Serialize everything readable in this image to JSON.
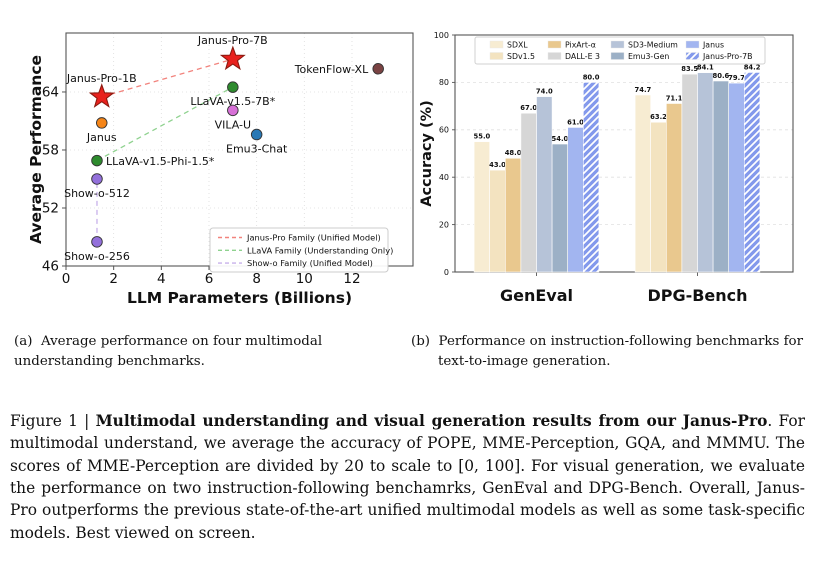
{
  "page": {
    "background": "#ffffff"
  },
  "subcaptions": {
    "a": {
      "marker": "(a)",
      "text": "Average performance on four multimodal understanding benchmarks."
    },
    "b": {
      "marker": "(b)",
      "text": "Performance on instruction-following benchmarks for text-to-image generation."
    }
  },
  "caption": {
    "prefix": "Figure 1 | ",
    "bold": "Multimodal understanding and visual generation results from our Janus-Pro",
    "rest": ". For multimodal understand, we average the accuracy of POPE, MME-Perception, GQA, and MMMU. The scores of MME-Perception are divided by 20 to scale to [0, 100]. For visual generation, we evaluate the performance on two instruction-following benchamrks, GenEval and DPG-Bench. Overall, Janus-Pro outperforms the previous state-of-the-art unified multimodal models as well as some task-specific models. Best viewed on screen."
  },
  "chart_data": [
    {
      "type": "scatter",
      "xlabel": "LLM Parameters (Billions)",
      "ylabel": "Average Performance",
      "xlim": [
        0,
        14.56
      ],
      "ylim": [
        46,
        70.1
      ],
      "xticks": [
        0,
        2,
        4,
        6,
        8,
        10,
        12
      ],
      "yticks": [
        46,
        52,
        58,
        64
      ],
      "grid": true,
      "points": [
        {
          "label": "Janus-Pro-7B",
          "x": 7.0,
          "y": 67.4,
          "marker": "star",
          "color": "#e8211d",
          "edge": "#8b1a10",
          "label_pos": "above"
        },
        {
          "label": "Janus-Pro-1B",
          "x": 1.5,
          "y": 63.5,
          "marker": "star",
          "color": "#e8211d",
          "edge": "#8b1a10",
          "label_pos": "above"
        },
        {
          "label": "TokenFlow-XL",
          "x": 13.1,
          "y": 66.4,
          "marker": "circle",
          "color": "#7a4343",
          "edge": "#333333",
          "label_pos": "left"
        },
        {
          "label": "LLaVA-v1.5-7B*",
          "x": 7.0,
          "y": 64.5,
          "marker": "circle",
          "color": "#2e8b2e",
          "edge": "#333333",
          "label_pos": "below"
        },
        {
          "label": "VILA-U",
          "x": 7.0,
          "y": 62.1,
          "marker": "circle",
          "color": "#d770d7",
          "edge": "#333333",
          "label_pos": "below"
        },
        {
          "label": "Emu3-Chat",
          "x": 8.0,
          "y": 59.6,
          "marker": "circle",
          "color": "#2878b5",
          "edge": "#333333",
          "label_pos": "below"
        },
        {
          "label": "Janus",
          "x": 1.5,
          "y": 60.8,
          "marker": "circle",
          "color": "#f58518",
          "edge": "#333333",
          "label_pos": "below"
        },
        {
          "label": "LLaVA-v1.5-Phi-1.5*",
          "x": 1.3,
          "y": 56.9,
          "marker": "circle",
          "color": "#2e8b2e",
          "edge": "#333333",
          "label_pos": "right"
        },
        {
          "label": "Show-o-512",
          "x": 1.3,
          "y": 55.0,
          "marker": "circle",
          "color": "#9370db",
          "edge": "#333333",
          "label_pos": "below"
        },
        {
          "label": "Show-o-256",
          "x": 1.3,
          "y": 48.5,
          "marker": "circle",
          "color": "#9370db",
          "edge": "#333333",
          "label_pos": "below"
        }
      ],
      "lines": [
        {
          "from": [
            1.5,
            63.5
          ],
          "to": [
            7.0,
            67.4
          ],
          "color": "#f2837d"
        },
        {
          "from": [
            1.3,
            56.9
          ],
          "to": [
            7.0,
            64.5
          ],
          "color": "#8fd28f"
        },
        {
          "from": [
            1.3,
            48.5
          ],
          "to": [
            1.3,
            55.0
          ],
          "color": "#c7b1ea"
        }
      ],
      "legend": [
        {
          "label": "Janus-Pro Family (Unified Model)",
          "color": "#f2837d"
        },
        {
          "label": "LLaVA Family (Understanding Only)",
          "color": "#8fd28f"
        },
        {
          "label": "Show-o Family (Unified Model)",
          "color": "#c7b1ea"
        }
      ],
      "legend_position": "lower right"
    },
    {
      "type": "bar",
      "ylabel": "Accuracy (%)",
      "ylim": [
        0,
        100
      ],
      "yticks": [
        0,
        20,
        40,
        60,
        80,
        100
      ],
      "grid": true,
      "categories": [
        "GenEval",
        "DPG-Bench"
      ],
      "series": [
        {
          "name": "SDXL",
          "color": "#f7ecd2",
          "values": [
            55.0,
            74.7
          ]
        },
        {
          "name": "SDv1.5",
          "color": "#f3e3c0",
          "values": [
            43.0,
            63.2
          ]
        },
        {
          "name": "PixArt-α",
          "color": "#e9c88e",
          "values": [
            48.0,
            71.1
          ]
        },
        {
          "name": "DALL-E 3",
          "color": "#d6d6d6",
          "values": [
            67.0,
            83.5
          ]
        },
        {
          "name": "SD3-Medium",
          "color": "#b6c3d8",
          "values": [
            74.0,
            84.1
          ]
        },
        {
          "name": "Emu3-Gen",
          "color": "#9cb0c6",
          "values": [
            54.0,
            80.6
          ]
        },
        {
          "name": "Janus",
          "color": "#a2b5f0",
          "values": [
            61.0,
            79.7
          ]
        },
        {
          "name": "Janus-Pro-7B",
          "color": "#8399ec",
          "values": [
            80.0,
            84.2
          ],
          "hatch": true
        }
      ],
      "legend_position": "upper center"
    }
  ]
}
